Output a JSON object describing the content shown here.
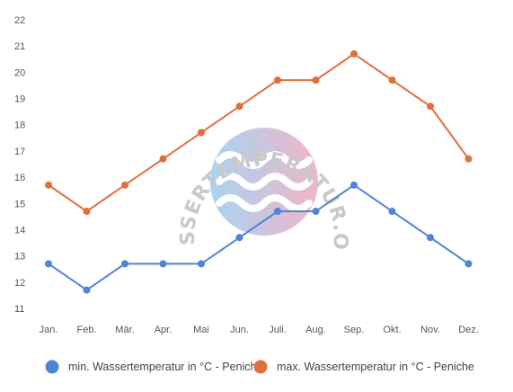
{
  "chart_data": {
    "type": "line",
    "categories": [
      "Jan.",
      "Feb.",
      "Mär.",
      "Apr.",
      "Mai",
      "Jun.",
      "Juli.",
      "Aug.",
      "Sep.",
      "Okt.",
      "Nov.",
      "Dez."
    ],
    "ylim": [
      11,
      22
    ],
    "yticks": [
      11,
      12,
      13,
      14,
      15,
      16,
      17,
      18,
      19,
      20,
      21,
      22
    ],
    "grid": false,
    "legend_position": "bottom",
    "series": [
      {
        "name": "min. Wassertemperatur in °C - Peniche",
        "color": "#4f84d6",
        "values": [
          12.7,
          11.7,
          12.7,
          12.7,
          12.7,
          13.7,
          14.7,
          14.7,
          15.7,
          14.7,
          13.7,
          12.7
        ]
      },
      {
        "name": "max. Wassertemperatur in °C - Peniche",
        "color": "#e0703a",
        "values": [
          15.7,
          14.7,
          15.7,
          16.7,
          17.7,
          18.7,
          19.7,
          19.7,
          20.7,
          19.7,
          18.7,
          16.7
        ]
      }
    ]
  },
  "watermark": {
    "text": "WASSERTEMPERATUR.ORG",
    "gradient_start": "#a9d3f2",
    "gradient_end": "#efb6c8"
  }
}
